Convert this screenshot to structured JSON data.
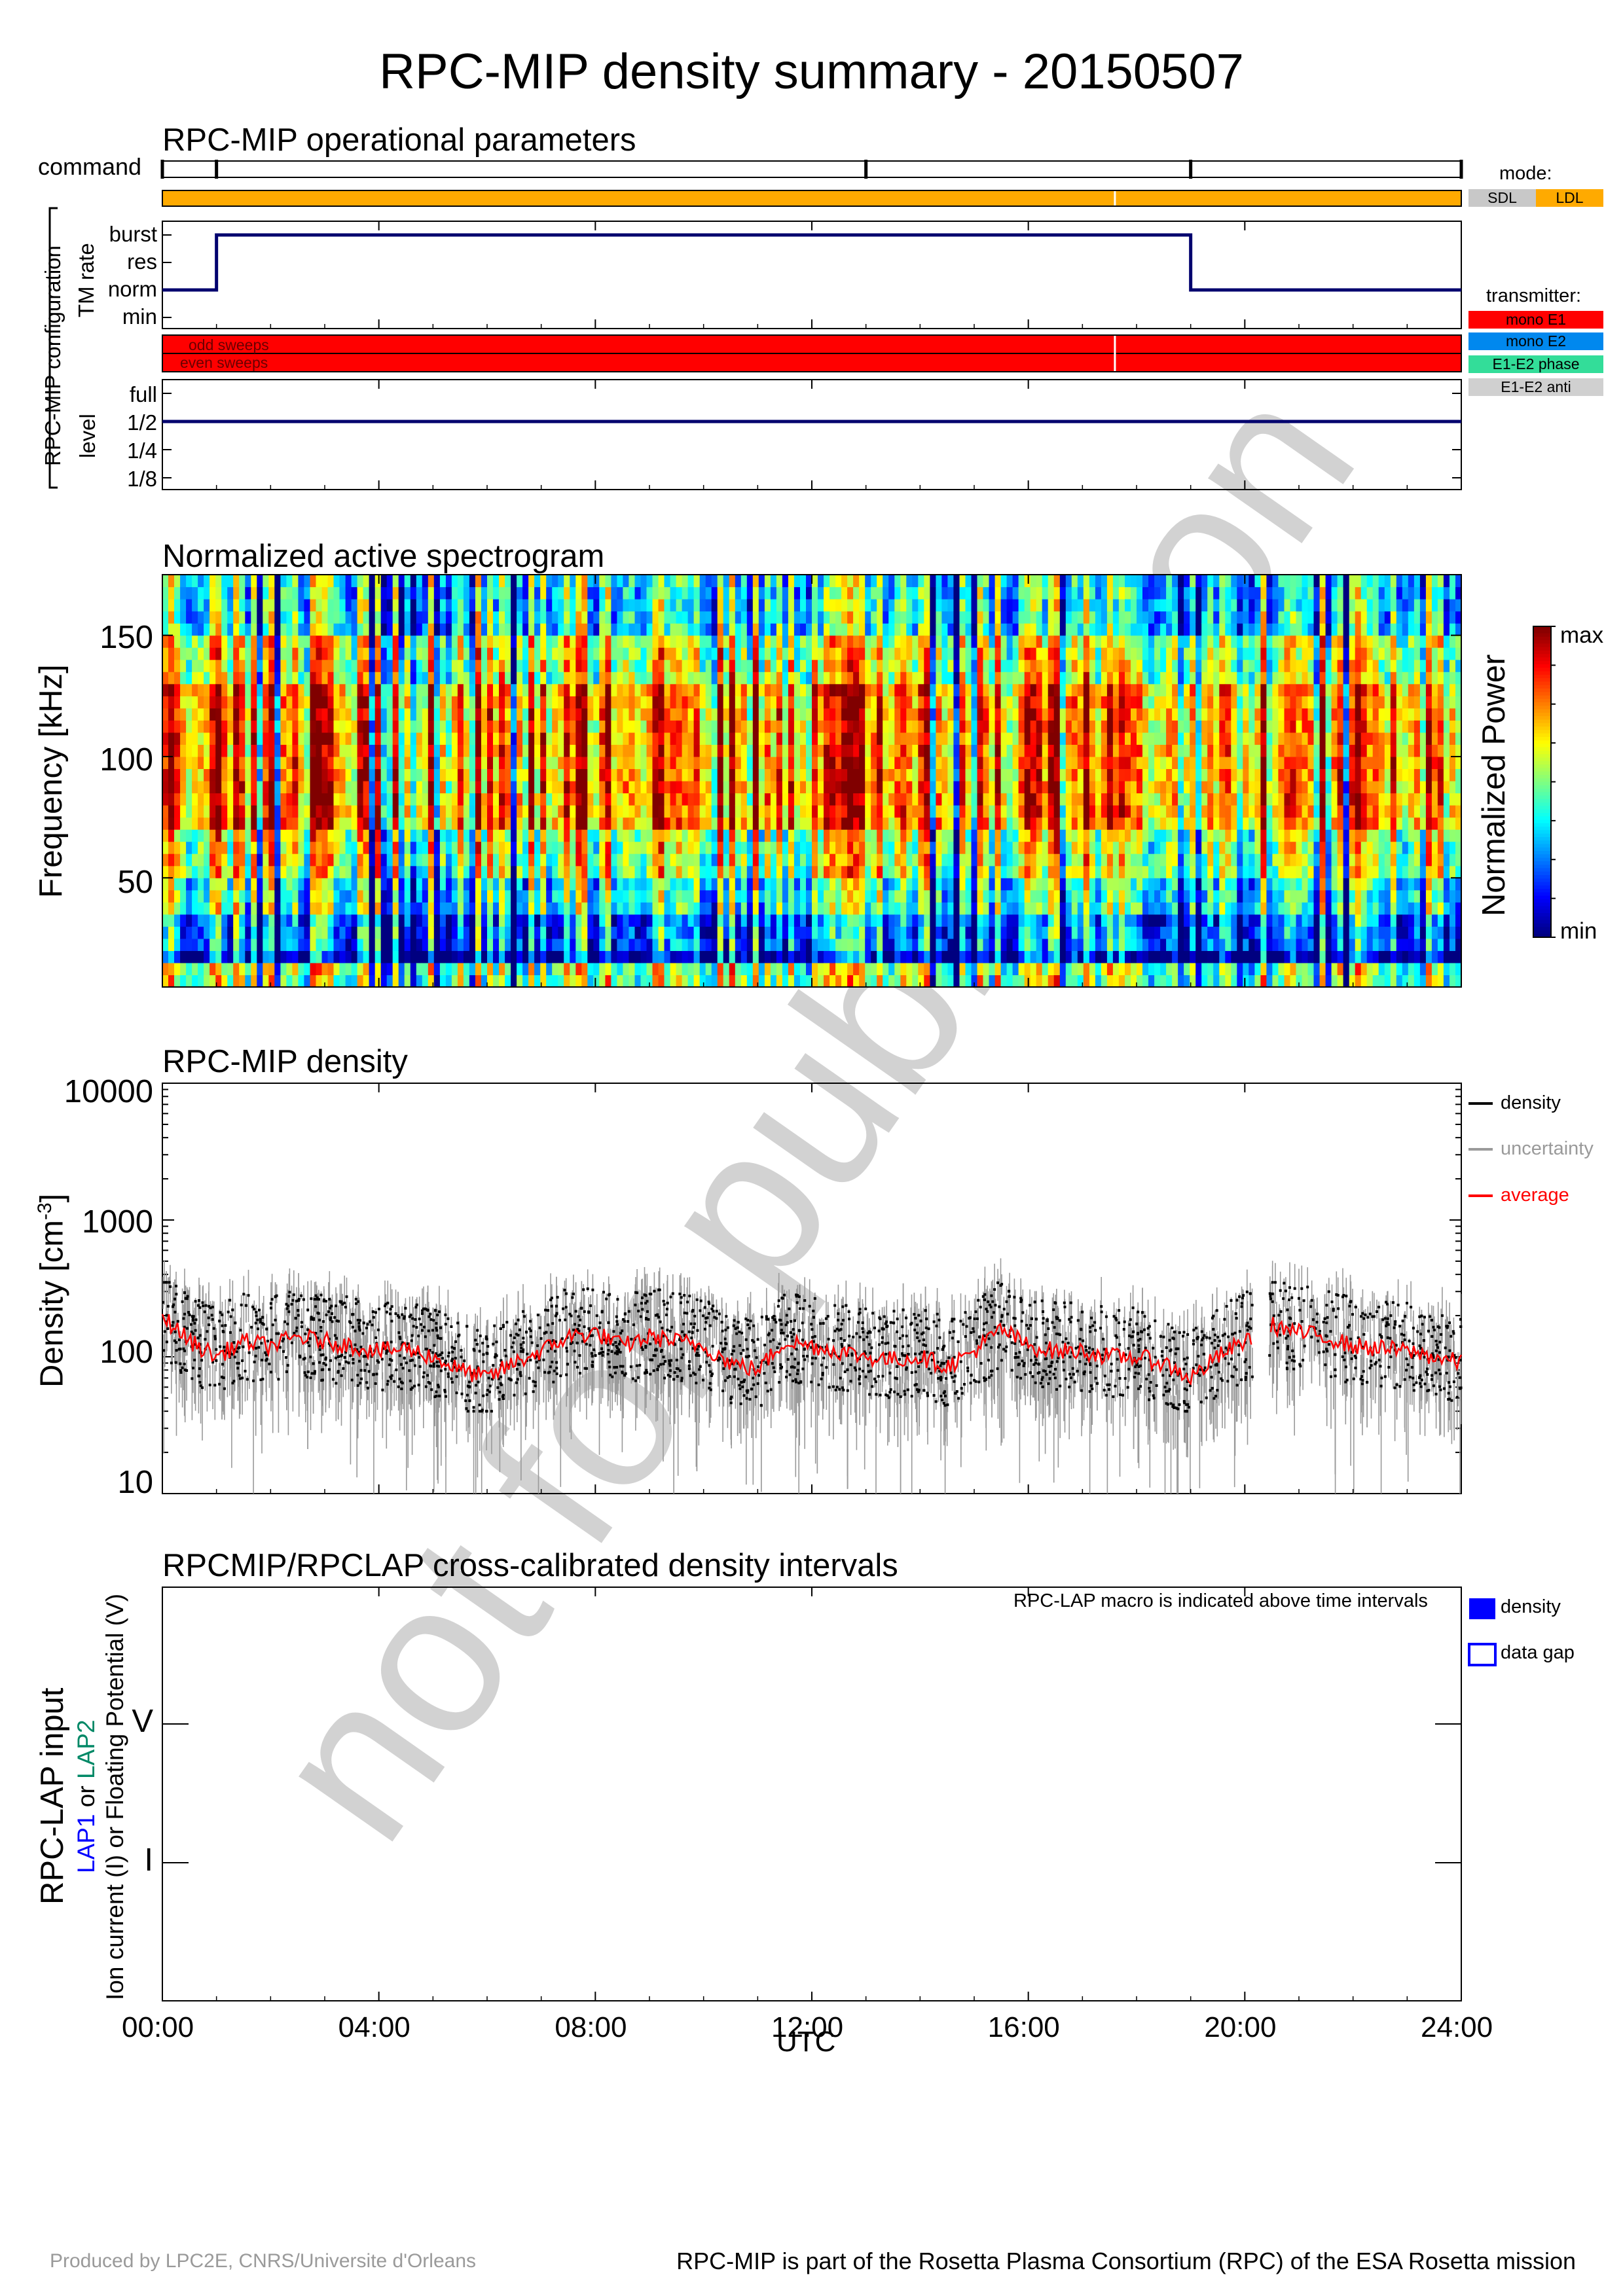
{
  "title": "RPC-MIP density summary - 20150507",
  "footer": {
    "left": "Produced by LPC2E, CNRS/Universite d'Orleans",
    "right": "RPC-MIP is part of the Rosetta Plasma Consortium (RPC) of the ESA Rosetta mission"
  },
  "watermark": "not for publication",
  "colors": {
    "mode_ldl": "#FFAA00",
    "mode_sdl": "#C8C8C8",
    "mono_e1": "#FF0000",
    "mono_e2": "#0088EE",
    "e1e2_phase": "#33DD99",
    "e1e2_anti": "#D0D0D0",
    "line": "#00006E",
    "lap_density": "#0000FF"
  },
  "ops": {
    "title": "RPC-MIP operational parameters",
    "command_label": "command",
    "config_label": "RPC-MIP configuration",
    "tm_label": "TM rate",
    "tm_ticks": [
      "burst",
      "res",
      "norm",
      "min"
    ],
    "sweep_labels": [
      "odd sweeps",
      "even sweeps"
    ],
    "level_label": "level",
    "level_ticks": [
      "full",
      "1/2",
      "1/4",
      "1/8"
    ],
    "mode_title": "mode:",
    "mode_sdl": "SDL",
    "mode_ldl": "LDL",
    "transmitter_title": "transmitter:",
    "transmitters": [
      "mono E1",
      "mono E2",
      "E1-E2 phase",
      "E1-E2 anti"
    ],
    "command_times_h": [
      0.0,
      1.0,
      13.0,
      19.0,
      24.0
    ],
    "mode": "LDL",
    "data_gap_h": 17.6,
    "tm_rate_steps": [
      {
        "from": 0.0,
        "to": 1.0,
        "rate": "norm"
      },
      {
        "from": 1.0,
        "to": 19.0,
        "rate": "burst"
      },
      {
        "from": 19.0,
        "to": 24.0,
        "rate": "norm"
      }
    ],
    "transmitter": "mono E1",
    "level": "1/2"
  },
  "spectrogram": {
    "title": "Normalized active spectrogram",
    "ylabel": "Frequency [kHz]",
    "yticks": [
      "150",
      "100",
      "50"
    ],
    "colorbar_label": "Normalized Power",
    "colorbar_max": "max",
    "colorbar_min": "min"
  },
  "density": {
    "title": "RPC-MIP density",
    "ylabel": "Density [cm",
    "ylabel_sup": "-3",
    "ylabel_end": "]",
    "yticks": [
      "10000",
      "1000",
      "100",
      "10"
    ],
    "legend": [
      "density",
      "uncertainty",
      "average"
    ]
  },
  "lap": {
    "title": "RPCMIP/RPCLAP cross-calibrated density intervals",
    "ylabel1": "RPC-LAP input",
    "ylabel2_a": "LAP1",
    "ylabel2_b": " or ",
    "ylabel2_c": "LAP2",
    "ylabel3": "Ion current (I) or Floating Potential (V)",
    "yticks": [
      "V",
      "I"
    ],
    "note": "RPC-LAP macro is indicated above time intervals",
    "legend": [
      "density",
      "data gap"
    ]
  },
  "xaxis": {
    "ticks": [
      "00:00",
      "04:00",
      "08:00",
      "12:00",
      "16:00",
      "20:00",
      "24:00"
    ],
    "label": "UTC"
  },
  "chart_data": [
    {
      "type": "heatmap",
      "title": "Normalized active spectrogram",
      "xlabel": "UTC",
      "ylabel": "Frequency [kHz]",
      "xlim_h": [
        0,
        24
      ],
      "ylim": [
        5,
        175
      ],
      "yticks": [
        50,
        100,
        150
      ],
      "colorbar": [
        "min",
        "max"
      ],
      "band_summary_kHz": [
        {
          "from": 5,
          "to": 20,
          "level": "low/variable"
        },
        {
          "from": 20,
          "to": 45,
          "level": "low"
        },
        {
          "from": 45,
          "to": 70,
          "level": "medium"
        },
        {
          "from": 70,
          "to": 130,
          "level": "high"
        },
        {
          "from": 130,
          "to": 175,
          "level": "medium-low"
        }
      ]
    },
    {
      "type": "scatter",
      "title": "RPC-MIP density",
      "xlabel": "UTC",
      "ylabel": "Density [cm-3]",
      "yscale": "log",
      "ylim": [
        10,
        10000
      ],
      "xlim_h": [
        0,
        24
      ],
      "series": [
        {
          "name": "average",
          "x": [
            0.0,
            0.5,
            1.0,
            1.5,
            2.0,
            2.5,
            3.0,
            3.5,
            4.0,
            4.5,
            5.0,
            5.5,
            6.0,
            6.5,
            7.0,
            7.5,
            8.0,
            8.5,
            9.0,
            9.5,
            10.0,
            10.5,
            11.0,
            11.5,
            12.0,
            12.5,
            13.0,
            13.5,
            14.0,
            14.5,
            15.0,
            15.5,
            16.0,
            16.5,
            17.0,
            17.5,
            18.0,
            18.5,
            19.0,
            19.5,
            20.0,
            20.5,
            21.0,
            21.5,
            22.0,
            22.5,
            23.0,
            23.5,
            24.0
          ],
          "y": [
            200,
            130,
            100,
            130,
            120,
            140,
            130,
            120,
            110,
            115,
            100,
            80,
            70,
            90,
            110,
            140,
            150,
            120,
            140,
            130,
            120,
            90,
            80,
            130,
            120,
            110,
            100,
            95,
            100,
            85,
            110,
            160,
            120,
            110,
            110,
            100,
            100,
            90,
            70,
            100,
            130,
            170,
            150,
            140,
            120,
            115,
            110,
            100,
            90
          ]
        },
        {
          "name": "density",
          "scatter_range": [
            40,
            350
          ]
        }
      ]
    }
  ]
}
